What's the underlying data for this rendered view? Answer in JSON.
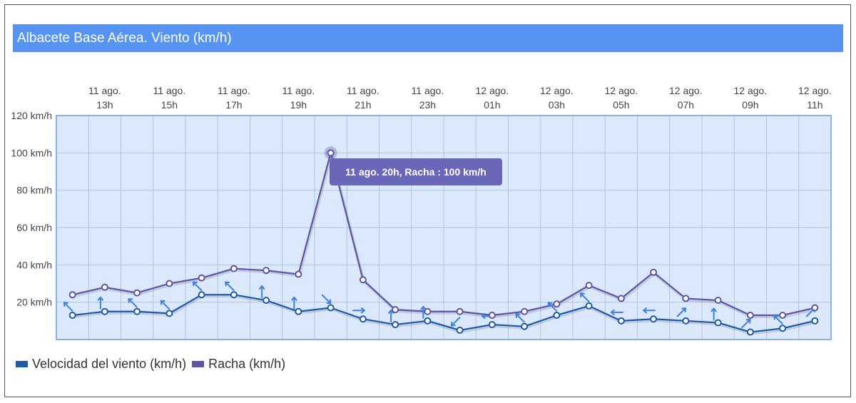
{
  "title": "Albacete Base Aérea. Viento (km/h)",
  "tooltip": "11 ago. 20h, Racha : 100 km/h",
  "colors": {
    "title_bg": "#5794f2",
    "plot_bg": "#dce8fc",
    "plot_border": "#8bb1e8",
    "velocidad": "#1f5aa8",
    "racha": "#5c56a6",
    "arrow": "#3d80dd",
    "tooltip_bg": "#6b67b8"
  },
  "legend": [
    {
      "label": "Velocidad del viento (km/h)",
      "color": "#1f5aa8"
    },
    {
      "label": "Racha (km/h)",
      "color": "#5c56a6"
    }
  ],
  "chart_data": {
    "type": "line",
    "title": "Albacete Base Aérea. Viento (km/h)",
    "ylim": [
      0,
      120
    ],
    "yticks": [
      20,
      40,
      60,
      80,
      100,
      120
    ],
    "ytick_labels": [
      "20 km/h",
      "40 km/h",
      "60 km/h",
      "80 km/h",
      "100 km/h",
      "120 km/h"
    ],
    "x": [
      "11 ago. 12h",
      "11 ago. 13h",
      "11 ago. 14h",
      "11 ago. 15h",
      "11 ago. 16h",
      "11 ago. 17h",
      "11 ago. 18h",
      "11 ago. 19h",
      "11 ago. 20h",
      "11 ago. 21h",
      "11 ago. 22h",
      "11 ago. 23h",
      "12 ago. 00h",
      "12 ago. 01h",
      "12 ago. 02h",
      "12 ago. 03h",
      "12 ago. 04h",
      "12 ago. 05h",
      "12 ago. 06h",
      "12 ago. 07h",
      "12 ago. 08h",
      "12 ago. 09h",
      "12 ago. 10h",
      "12 ago. 11h"
    ],
    "xtick_labels": [
      [
        "11 ago.",
        "13h"
      ],
      [
        "11 ago.",
        "15h"
      ],
      [
        "11 ago.",
        "17h"
      ],
      [
        "11 ago.",
        "19h"
      ],
      [
        "11 ago.",
        "21h"
      ],
      [
        "11 ago.",
        "23h"
      ],
      [
        "12 ago.",
        "01h"
      ],
      [
        "12 ago.",
        "03h"
      ],
      [
        "12 ago.",
        "05h"
      ],
      [
        "12 ago.",
        "07h"
      ],
      [
        "12 ago.",
        "09h"
      ],
      [
        "12 ago.",
        "11h"
      ]
    ],
    "grid": true,
    "legend_position": "bottom-left",
    "series": [
      {
        "name": "Velocidad del viento (km/h)",
        "values": [
          13,
          15,
          15,
          14,
          24,
          24,
          21,
          15,
          17,
          11,
          8,
          10,
          5,
          8,
          7,
          13,
          18,
          10,
          11,
          10,
          9,
          4,
          6,
          10
        ],
        "wind_direction_arrows": [
          "up-left",
          "up",
          "up-left",
          "up-left",
          "up-left",
          "up-left",
          "up",
          "up",
          "down-right",
          "right",
          "up",
          "up",
          "down-left",
          "left",
          "up-left",
          "up-left",
          "up-left",
          "left",
          "left",
          "up-right",
          "up",
          "up-right",
          "up-left",
          "up-right"
        ]
      },
      {
        "name": "Racha (km/h)",
        "values": [
          24,
          28,
          25,
          30,
          33,
          38,
          37,
          35,
          100,
          32,
          16,
          15,
          15,
          13,
          15,
          19,
          29,
          22,
          36,
          22,
          21,
          13,
          13,
          17
        ]
      }
    ]
  }
}
